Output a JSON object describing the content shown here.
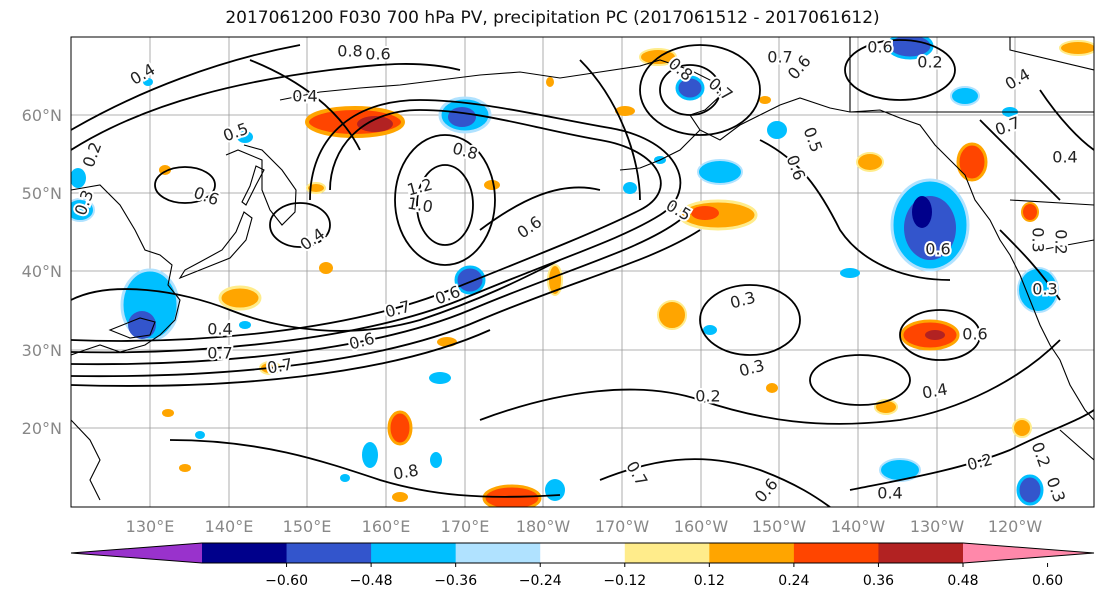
{
  "title": "2017061200 F030 700 hPa PV, precipitation PC (2017061512 - 2017061612)",
  "lat_labels": [
    "60°N",
    "50°N",
    "40°N",
    "30°N",
    "20°N"
  ],
  "lon_labels": [
    "130°E",
    "140°E",
    "150°E",
    "160°E",
    "170°E",
    "180°W",
    "170°W",
    "160°W",
    "150°W",
    "140°W",
    "130°W",
    "120°W"
  ],
  "colorbar": {
    "tick_labels": [
      "−0.60",
      "−0.48",
      "−0.36",
      "−0.24",
      "−0.12",
      "0.12",
      "0.24",
      "0.36",
      "0.48",
      "0.60"
    ],
    "colors": [
      "#9932cc",
      "#00008b",
      "#3355cc",
      "#00bfff",
      "#b0e2ff",
      "#ffffff",
      "#ffec8b",
      "#ffa500",
      "#ff4500",
      "#b22222",
      "#ff88aa"
    ]
  },
  "contour_labels": [
    "0.4",
    "0.8",
    "0.6",
    "0.4",
    "0.5",
    "0.2",
    "0.3",
    "0.6",
    "0.8",
    "1.2",
    "1.0",
    "0.4",
    "0.6",
    "0.7",
    "0.6",
    "0.7",
    "0.4",
    "0.6",
    "0.7",
    "0.3",
    "0.3",
    "0.2",
    "0.4",
    "0.6",
    "0.6",
    "0.7",
    "0.6",
    "0.8",
    "0.7",
    "0.6",
    "0.5",
    "0.6",
    "0.4",
    "0.7",
    "0.4",
    "0.2",
    "0.3",
    "0.2",
    "0.2",
    "0.4",
    "0.2",
    "0.3",
    "0.7",
    "0.8",
    "0.6",
    "0.5",
    "0.3"
  ]
}
